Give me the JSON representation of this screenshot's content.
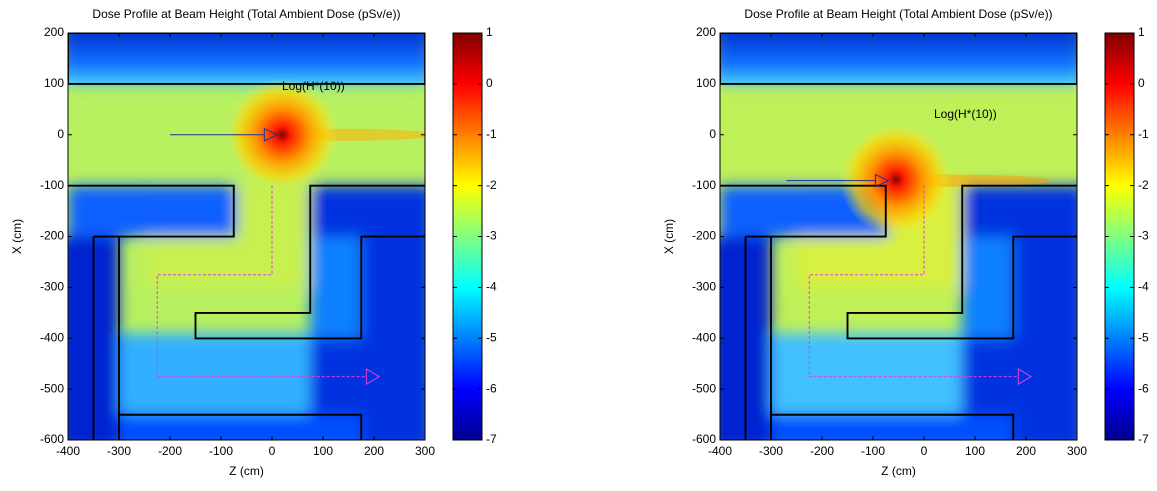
{
  "chart_data": [
    {
      "type": "heatmap",
      "title": "Dose Profile at Beam Height (Total Ambient Dose (pSv/e))",
      "xlabel": "Z (cm)",
      "ylabel": "X (cm)",
      "annotation": "Log(H*(10))",
      "xlim": [
        -400,
        300
      ],
      "ylim": [
        -600,
        200
      ],
      "xticks": [
        -400,
        -300,
        -200,
        -100,
        0,
        100,
        200,
        300
      ],
      "yticks": [
        -600,
        -500,
        -400,
        -300,
        -200,
        -100,
        0,
        100,
        200
      ],
      "colormap": "jet",
      "clim": [
        -7,
        1
      ],
      "cticks": [
        -7,
        -6,
        -5,
        -4,
        -3,
        -2,
        -1,
        0,
        1
      ]
    },
    {
      "type": "heatmap",
      "title": "Dose Profile at Beam Height (Total Ambient Dose (pSv/e))",
      "xlabel": "Z (cm)",
      "ylabel": "X (cm)",
      "annotation": "Log(H*(10))",
      "xlim": [
        -400,
        300
      ],
      "ylim": [
        -600,
        200
      ],
      "xticks": [
        -400,
        -300,
        -200,
        -100,
        0,
        100,
        200,
        300
      ],
      "yticks": [
        -600,
        -500,
        -400,
        -300,
        -200,
        -100,
        0,
        100,
        200
      ],
      "colormap": "jet",
      "clim": [
        -7,
        1
      ],
      "cticks": [
        -7,
        -6,
        -5,
        -4,
        -3,
        -2,
        -1,
        0,
        1
      ]
    }
  ]
}
